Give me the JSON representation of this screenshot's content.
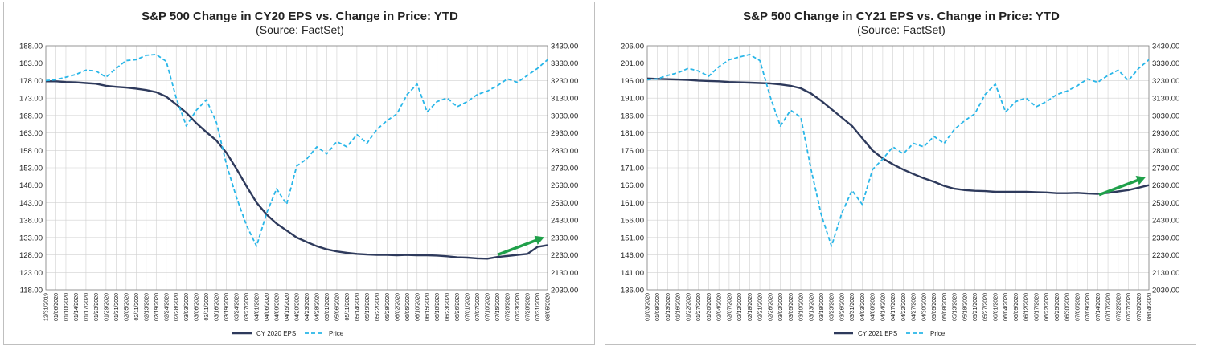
{
  "colors": {
    "eps_line": "#2e3a5c",
    "price_line": "#29b6e8",
    "arrow": "#1fa04a",
    "grid": "#d0d0d0",
    "axis": "#808080"
  },
  "chart_data": [
    {
      "type": "line",
      "title": "S&P 500 Change in CY20 EPS vs. Change in Price: YTD",
      "subtitle": "(Source: FactSet)",
      "y_left_ticks": [
        "188.00",
        "183.00",
        "178.00",
        "173.00",
        "168.00",
        "163.00",
        "158.00",
        "153.00",
        "148.00",
        "143.00",
        "138.00",
        "133.00",
        "128.00",
        "123.00",
        "118.00"
      ],
      "y_right_ticks": [
        "3430.00",
        "3330.00",
        "3230.00",
        "3130.00",
        "3030.00",
        "2930.00",
        "2830.00",
        "2730.00",
        "2630.00",
        "2530.00",
        "2430.00",
        "2330.00",
        "2230.00",
        "2130.00",
        "2030.00"
      ],
      "ylim_left": [
        118,
        188
      ],
      "ylim_right": [
        2030,
        3430
      ],
      "x_ticks": [
        "12/31/2019",
        "01/06/2020",
        "01/10/2020",
        "01/14/2020",
        "01/17/2020",
        "01/23/2020",
        "01/29/2020",
        "01/31/2020",
        "02/05/2020",
        "02/11/2020",
        "02/13/2020",
        "02/19/2020",
        "02/24/2020",
        "02/28/2020",
        "03/03/2020",
        "03/06/2020",
        "03/11/2020",
        "03/16/2020",
        "03/19/2020",
        "03/24/2020",
        "03/27/2020",
        "04/01/2020",
        "04/06/2020",
        "04/09/2020",
        "04/15/2020",
        "04/20/2020",
        "04/23/2020",
        "04/28/2020",
        "05/01/2020",
        "05/06/2020",
        "05/11/2020",
        "05/14/2020",
        "05/19/2020",
        "05/22/2020",
        "05/28/2020",
        "06/02/2020",
        "06/05/2020",
        "06/10/2020",
        "06/15/2020",
        "06/18/2020",
        "06/23/2020",
        "06/26/2020",
        "07/01/2020",
        "07/07/2020",
        "07/10/2020",
        "07/15/2020",
        "07/20/2020",
        "07/23/2020",
        "07/28/2020",
        "07/31/2020",
        "08/05/2020"
      ],
      "series": [
        {
          "name": "CY 2020 EPS",
          "axis": "left",
          "style": "solid",
          "values": [
            177.8,
            177.8,
            177.6,
            177.5,
            177.3,
            177.1,
            176.5,
            176.2,
            176.0,
            175.7,
            175.3,
            174.7,
            173.4,
            171.2,
            168.8,
            165.8,
            163.2,
            160.8,
            157.3,
            152.7,
            147.7,
            143.0,
            139.6,
            137.0,
            135.0,
            133.0,
            131.7,
            130.5,
            129.6,
            129.0,
            128.6,
            128.3,
            128.1,
            128.0,
            128.0,
            127.9,
            128.0,
            127.9,
            127.9,
            127.8,
            127.6,
            127.3,
            127.2,
            127.0,
            126.9,
            127.4,
            127.7,
            128.0,
            128.3,
            130.3,
            130.8
          ]
        },
        {
          "name": "Price",
          "axis": "right",
          "style": "dashed",
          "values": [
            3230,
            3235,
            3250,
            3265,
            3290,
            3285,
            3250,
            3300,
            3345,
            3350,
            3375,
            3380,
            3340,
            3130,
            2970,
            3060,
            3120,
            2990,
            2750,
            2560,
            2400,
            2280,
            2470,
            2610,
            2520,
            2740,
            2780,
            2850,
            2810,
            2880,
            2850,
            2920,
            2870,
            2950,
            3000,
            3040,
            3150,
            3210,
            3050,
            3110,
            3130,
            3080,
            3110,
            3150,
            3170,
            3200,
            3240,
            3220,
            3260,
            3300,
            3350
          ]
        }
      ],
      "legend": {
        "position": "bottom",
        "labels": [
          "CY 2020 EPS",
          "Price"
        ]
      },
      "annotations": [
        "green upward arrow near end of EPS line"
      ]
    },
    {
      "type": "line",
      "title": "S&P 500 Change in CY21 EPS vs. Change in Price: YTD",
      "subtitle": "(Source: FactSet)",
      "y_left_ticks": [
        "206.00",
        "201.00",
        "196.00",
        "191.00",
        "186.00",
        "181.00",
        "176.00",
        "171.00",
        "166.00",
        "161.00",
        "156.00",
        "151.00",
        "146.00",
        "141.00",
        "136.00"
      ],
      "y_right_ticks": [
        "3430.00",
        "3330.00",
        "3230.00",
        "3130.00",
        "3030.00",
        "2930.00",
        "2830.00",
        "2730.00",
        "2630.00",
        "2530.00",
        "2430.00",
        "2330.00",
        "2230.00",
        "2130.00",
        "2030.00"
      ],
      "ylim_left": [
        136,
        206
      ],
      "ylim_right": [
        2030,
        3430
      ],
      "x_ticks": [
        "01/03/2020",
        "01/08/2020",
        "01/13/2020",
        "01/16/2020",
        "01/22/2020",
        "01/27/2020",
        "01/30/2020",
        "02/04/2020",
        "02/07/2020",
        "02/12/2020",
        "02/18/2020",
        "02/21/2020",
        "02/26/2020",
        "03/02/2020",
        "03/05/2020",
        "03/10/2020",
        "03/13/2020",
        "03/18/2020",
        "03/23/2020",
        "03/26/2020",
        "03/31/2020",
        "04/03/2020",
        "04/08/2020",
        "04/14/2020",
        "04/17/2020",
        "04/22/2020",
        "04/27/2020",
        "04/30/2020",
        "05/05/2020",
        "05/08/2020",
        "05/13/2020",
        "05/18/2020",
        "05/21/2020",
        "05/27/2020",
        "06/01/2020",
        "06/04/2020",
        "06/09/2020",
        "06/12/2020",
        "06/17/2020",
        "06/22/2020",
        "06/25/2020",
        "06/30/2020",
        "07/06/2020",
        "07/09/2020",
        "07/14/2020",
        "07/17/2020",
        "07/22/2020",
        "07/27/2020",
        "07/30/2020",
        "08/04/2020"
      ],
      "series": [
        {
          "name": "CY 2021 EPS",
          "axis": "left",
          "style": "solid",
          "values": [
            196.6,
            196.5,
            196.4,
            196.3,
            196.2,
            196.0,
            195.9,
            195.8,
            195.6,
            195.5,
            195.4,
            195.3,
            195.2,
            194.9,
            194.5,
            193.8,
            192.3,
            190.2,
            187.8,
            185.4,
            183.0,
            179.5,
            176.0,
            173.7,
            172.0,
            170.5,
            169.2,
            168.0,
            167.0,
            165.8,
            165.0,
            164.6,
            164.4,
            164.3,
            164.1,
            164.1,
            164.1,
            164.1,
            164.0,
            163.9,
            163.7,
            163.7,
            163.8,
            163.6,
            163.5,
            163.8,
            164.2,
            164.6,
            165.3,
            166.0
          ]
        },
        {
          "name": "Price",
          "axis": "right",
          "style": "dashed",
          "values": [
            3235,
            3240,
            3260,
            3275,
            3300,
            3285,
            3255,
            3310,
            3350,
            3365,
            3380,
            3345,
            3140,
            2970,
            3060,
            3020,
            2720,
            2460,
            2280,
            2470,
            2600,
            2520,
            2720,
            2780,
            2850,
            2810,
            2870,
            2850,
            2910,
            2870,
            2950,
            3000,
            3040,
            3150,
            3210,
            3050,
            3110,
            3130,
            3080,
            3110,
            3150,
            3170,
            3200,
            3240,
            3220,
            3260,
            3290,
            3230,
            3300,
            3350
          ]
        }
      ],
      "legend": {
        "position": "bottom",
        "labels": [
          "CY 2021 EPS",
          "Price"
        ]
      },
      "annotations": [
        "green upward arrow near end of EPS line"
      ]
    }
  ]
}
